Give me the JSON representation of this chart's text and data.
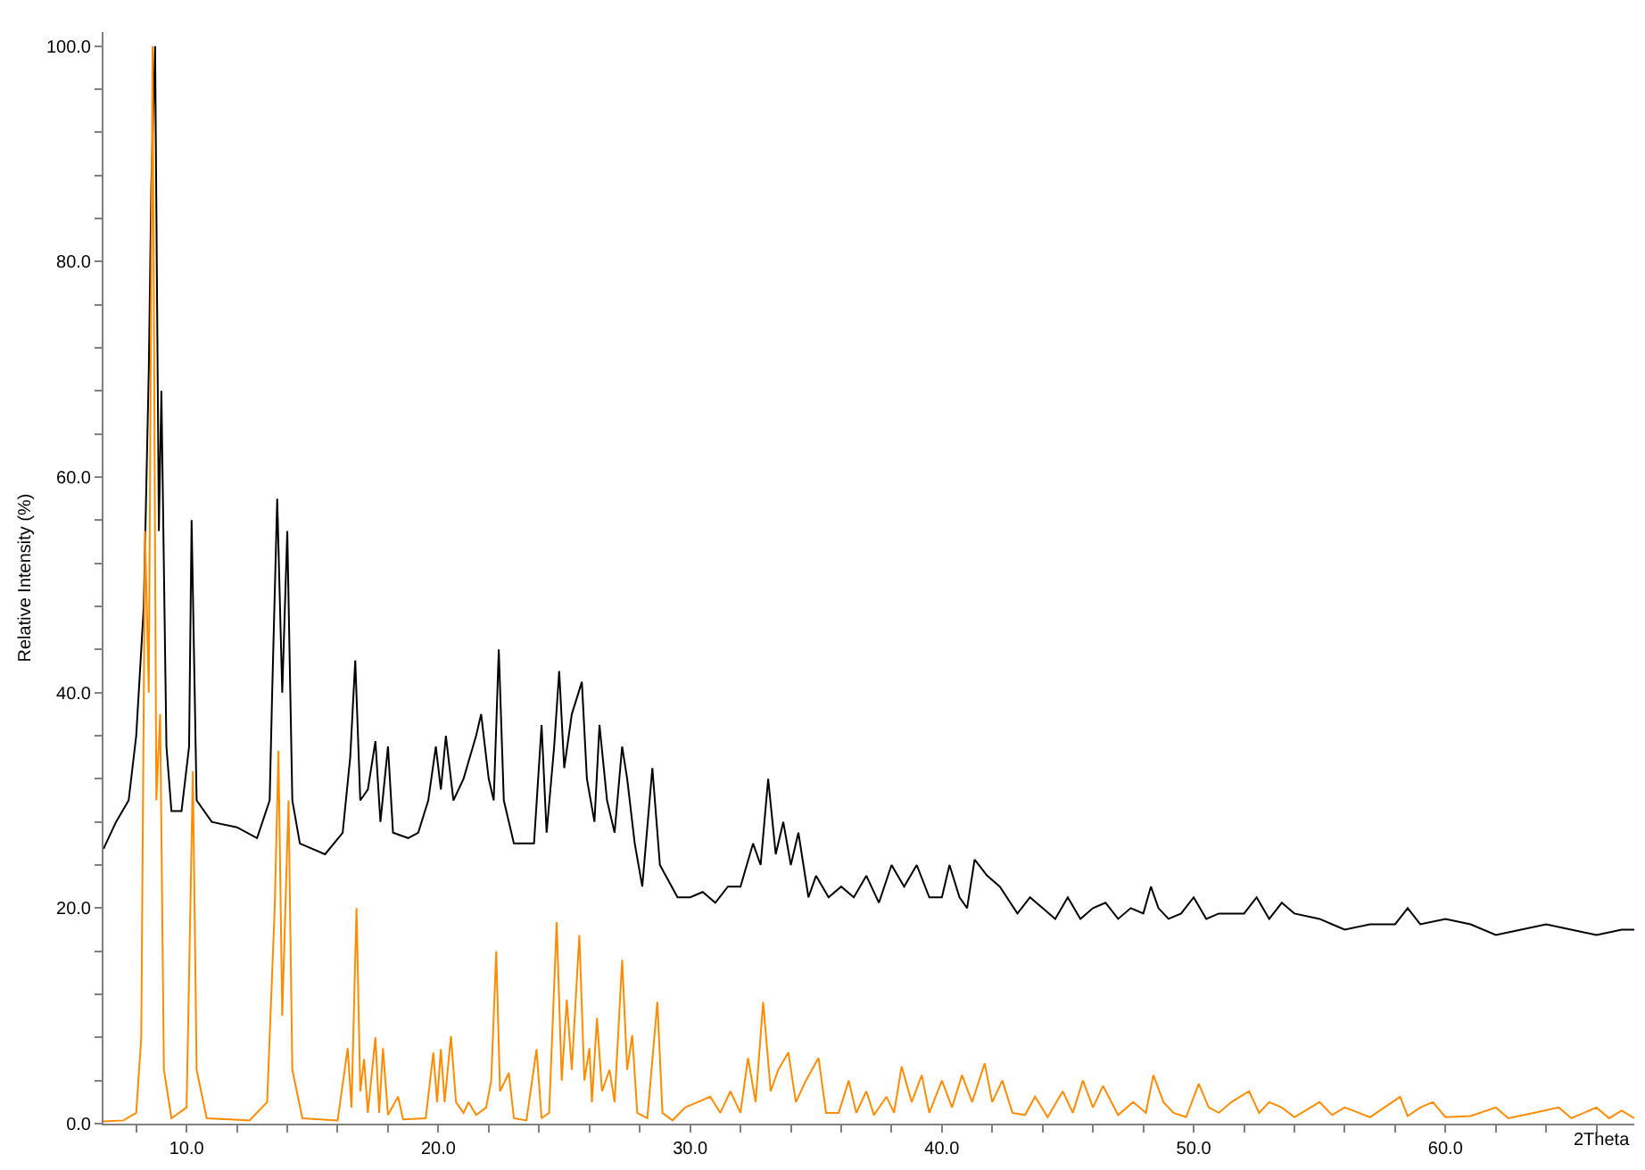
{
  "chart_data": {
    "type": "line",
    "xlabel": "2Theta",
    "ylabel": "Relative Intensity (%)",
    "xlim": [
      6.7,
      67.5
    ],
    "ylim": [
      0,
      101.3
    ],
    "xticks": [
      {
        "value": 8,
        "label": null
      },
      {
        "value": 10,
        "label": "10.0"
      },
      {
        "value": 12,
        "label": null
      },
      {
        "value": 14,
        "label": null
      },
      {
        "value": 16,
        "label": null
      },
      {
        "value": 18,
        "label": null
      },
      {
        "value": 20,
        "label": "20.0"
      },
      {
        "value": 22,
        "label": null
      },
      {
        "value": 24,
        "label": null
      },
      {
        "value": 26,
        "label": null
      },
      {
        "value": 28,
        "label": null
      },
      {
        "value": 30,
        "label": "30.0"
      },
      {
        "value": 32,
        "label": null
      },
      {
        "value": 34,
        "label": null
      },
      {
        "value": 36,
        "label": null
      },
      {
        "value": 38,
        "label": null
      },
      {
        "value": 40,
        "label": "40.0"
      },
      {
        "value": 42,
        "label": null
      },
      {
        "value": 44,
        "label": null
      },
      {
        "value": 46,
        "label": null
      },
      {
        "value": 48,
        "label": null
      },
      {
        "value": 50,
        "label": "50.0"
      },
      {
        "value": 52,
        "label": null
      },
      {
        "value": 54,
        "label": null
      },
      {
        "value": 56,
        "label": null
      },
      {
        "value": 58,
        "label": null
      },
      {
        "value": 60,
        "label": "60.0"
      },
      {
        "value": 62,
        "label": null
      },
      {
        "value": 64,
        "label": null
      },
      {
        "value": 66,
        "label": null
      }
    ],
    "yticks": [
      {
        "value": 0,
        "label": "0.0"
      },
      {
        "value": 4,
        "label": null
      },
      {
        "value": 8,
        "label": null
      },
      {
        "value": 12,
        "label": null
      },
      {
        "value": 16,
        "label": null
      },
      {
        "value": 20,
        "label": "20.0"
      },
      {
        "value": 24,
        "label": null
      },
      {
        "value": 28,
        "label": null
      },
      {
        "value": 32,
        "label": null
      },
      {
        "value": 36,
        "label": null
      },
      {
        "value": 40,
        "label": "40.0"
      },
      {
        "value": 44,
        "label": null
      },
      {
        "value": 48,
        "label": null
      },
      {
        "value": 52,
        "label": null
      },
      {
        "value": 56,
        "label": null
      },
      {
        "value": 60,
        "label": "60.0"
      },
      {
        "value": 64,
        "label": null
      },
      {
        "value": 68,
        "label": null
      },
      {
        "value": 72,
        "label": null
      },
      {
        "value": 76,
        "label": null
      },
      {
        "value": 80,
        "label": "80.0"
      },
      {
        "value": 84,
        "label": null
      },
      {
        "value": 88,
        "label": null
      },
      {
        "value": 92,
        "label": null
      },
      {
        "value": 96,
        "label": null
      },
      {
        "value": 100,
        "label": "100.0"
      }
    ],
    "marker": "none",
    "line_style": "solid",
    "series": [
      {
        "color": "#000000",
        "x": [
          6.7,
          7.2,
          7.7,
          8.0,
          8.3,
          8.5,
          8.6,
          8.75,
          8.9,
          9.0,
          9.2,
          9.4,
          9.8,
          10.1,
          10.2,
          10.4,
          11.0,
          12.0,
          12.8,
          13.3,
          13.4,
          13.6,
          13.8,
          14.0,
          14.2,
          14.5,
          15.5,
          16.2,
          16.5,
          16.7,
          16.9,
          17.2,
          17.5,
          17.7,
          18.0,
          18.2,
          18.8,
          19.2,
          19.6,
          19.9,
          20.1,
          20.3,
          20.6,
          21.0,
          21.5,
          21.7,
          22.0,
          22.2,
          22.4,
          22.6,
          23.0,
          23.4,
          23.8,
          24.1,
          24.3,
          24.6,
          24.8,
          25.0,
          25.3,
          25.7,
          25.9,
          26.2,
          26.4,
          26.7,
          27.0,
          27.3,
          27.5,
          27.8,
          28.1,
          28.5,
          28.8,
          29.5,
          30.0,
          30.5,
          31.0,
          31.5,
          32.0,
          32.5,
          32.8,
          33.1,
          33.4,
          33.7,
          34.0,
          34.3,
          34.7,
          35.0,
          35.5,
          36.0,
          36.5,
          37.0,
          37.5,
          38.0,
          38.5,
          39.0,
          39.5,
          40.0,
          40.3,
          40.7,
          41.0,
          41.3,
          41.8,
          42.3,
          43.0,
          43.5,
          44.0,
          44.5,
          45.0,
          45.5,
          46.0,
          46.5,
          47.0,
          47.5,
          48.0,
          48.3,
          48.6,
          49.0,
          49.5,
          50.0,
          50.5,
          51.0,
          52.0,
          52.5,
          53.0,
          53.5,
          54.0,
          55.0,
          55.5,
          56.0,
          57.0,
          58.0,
          58.5,
          59.0,
          60.0,
          61.0,
          62.0,
          63.0,
          64.0,
          65.0,
          66.0,
          67.0,
          67.5
        ],
        "values": [
          25.5,
          28,
          30,
          36,
          48,
          70,
          87,
          100,
          55,
          68,
          35,
          29,
          29,
          35,
          56,
          30,
          28,
          27.5,
          26.5,
          30,
          40,
          58,
          40,
          55,
          30,
          26,
          25,
          27,
          34,
          43,
          30,
          31,
          35.5,
          28,
          35,
          27,
          26.5,
          27,
          30,
          35,
          31,
          36,
          30,
          32,
          36,
          38,
          32,
          30,
          44,
          30,
          26,
          26,
          26,
          37,
          27,
          35,
          42,
          33,
          38,
          41,
          32,
          28,
          37,
          30,
          27,
          35,
          32,
          26,
          22,
          33,
          24,
          21,
          21,
          21.5,
          20.5,
          22,
          22,
          26,
          24,
          32,
          25,
          28,
          24,
          27,
          21,
          23,
          21,
          22,
          21,
          23,
          20.5,
          24,
          22,
          24,
          21,
          21,
          24,
          21,
          20,
          24.5,
          23,
          22,
          19.5,
          21,
          20,
          19,
          21,
          19,
          20,
          20.5,
          19,
          20,
          19.5,
          22,
          20,
          19,
          19.5,
          21,
          19,
          19.5,
          19.5,
          21,
          19,
          20.5,
          19.5,
          19,
          18.5,
          18,
          18.5,
          18.5,
          20,
          18.5,
          19,
          18.5,
          17.5,
          18,
          18.5,
          18,
          17.5,
          18,
          18
        ]
      },
      {
        "color": "#ff8c00",
        "x": [
          6.7,
          7.5,
          8.0,
          8.2,
          8.35,
          8.5,
          8.65,
          8.8,
          8.95,
          9.1,
          9.4,
          10.0,
          10.15,
          10.25,
          10.4,
          10.8,
          12.5,
          13.2,
          13.5,
          13.65,
          13.8,
          13.95,
          14.05,
          14.2,
          14.6,
          16.0,
          16.4,
          16.55,
          16.75,
          16.9,
          17.05,
          17.2,
          17.5,
          17.65,
          17.8,
          18.0,
          18.4,
          18.6,
          19.5,
          19.8,
          19.95,
          20.1,
          20.25,
          20.5,
          20.7,
          21.0,
          21.2,
          21.5,
          21.9,
          22.1,
          22.3,
          22.45,
          22.8,
          23.0,
          23.5,
          23.9,
          24.1,
          24.4,
          24.7,
          24.9,
          25.1,
          25.3,
          25.6,
          25.8,
          26.0,
          26.1,
          26.3,
          26.5,
          26.8,
          27.0,
          27.3,
          27.5,
          27.7,
          27.9,
          28.3,
          28.7,
          28.9,
          29.3,
          29.8,
          30.3,
          30.8,
          31.2,
          31.6,
          32.0,
          32.3,
          32.6,
          32.9,
          33.2,
          33.5,
          33.9,
          34.2,
          34.6,
          35.1,
          35.4,
          35.9,
          36.3,
          36.6,
          37.0,
          37.3,
          37.8,
          38.1,
          38.4,
          38.8,
          39.2,
          39.5,
          40.0,
          40.4,
          40.8,
          41.2,
          41.7,
          42.0,
          42.4,
          42.8,
          43.3,
          43.7,
          44.2,
          44.8,
          45.2,
          45.6,
          46.0,
          46.4,
          47.0,
          47.6,
          48.1,
          48.4,
          48.8,
          49.2,
          49.7,
          50.2,
          50.6,
          51.0,
          51.5,
          52.2,
          52.6,
          53.0,
          53.5,
          54.0,
          55.0,
          55.5,
          56.0,
          57.0,
          58.2,
          58.5,
          59.0,
          59.5,
          60.0,
          61.0,
          62.0,
          62.5,
          63.5,
          64.5,
          65.0,
          66.0,
          66.5,
          67.0,
          67.5
        ],
        "values": [
          0.2,
          0.3,
          1,
          8,
          55,
          40,
          100,
          30,
          38,
          5,
          0.5,
          1.5,
          20,
          32.7,
          5,
          0.5,
          0.3,
          2,
          20,
          34.6,
          10,
          22,
          30,
          5,
          0.5,
          0.3,
          7,
          1.5,
          20,
          3,
          6,
          1,
          8,
          1,
          7,
          0.8,
          2.5,
          0.4,
          0.5,
          6.6,
          2,
          6.9,
          2,
          8.1,
          2,
          1,
          2,
          0.8,
          1.5,
          4,
          16,
          3,
          4.7,
          0.5,
          0.3,
          6.9,
          0.5,
          1,
          18.7,
          4,
          11.5,
          5,
          17.5,
          4,
          7,
          2,
          9.8,
          3,
          5,
          2,
          15.2,
          5,
          8.2,
          1,
          0.5,
          11.3,
          1,
          0.3,
          1.5,
          2,
          2.5,
          1,
          3,
          1,
          6.1,
          2,
          11.3,
          3,
          5,
          6.6,
          2,
          4,
          6.1,
          1,
          1,
          4,
          1,
          3,
          0.8,
          2.5,
          1,
          5.3,
          2,
          4.5,
          1,
          4,
          1.5,
          4.5,
          2,
          5.6,
          2,
          4,
          1,
          0.8,
          2.5,
          0.6,
          3,
          1,
          4,
          1.5,
          3.5,
          0.8,
          2,
          1,
          4.5,
          2,
          1,
          0.6,
          3.7,
          1.5,
          1,
          2,
          3,
          1,
          2,
          1.5,
          0.6,
          2,
          0.8,
          1.5,
          0.6,
          2.5,
          0.7,
          1.5,
          2,
          0.6,
          0.7,
          1.5,
          0.5,
          1,
          1.5,
          0.5,
          1.5,
          0.5,
          1.2,
          0.5
        ]
      }
    ]
  }
}
